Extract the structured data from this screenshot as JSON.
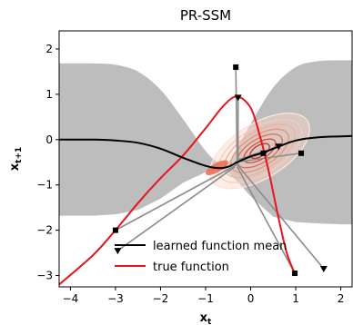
{
  "chart_data": {
    "type": "line",
    "title": "PR-SSM",
    "xlabel": "x_t",
    "ylabel": "x_{t+1}",
    "xlim": [
      -4.25,
      2.25
    ],
    "ylim": [
      -3.25,
      2.4
    ],
    "xticks": [
      -4,
      -3,
      -2,
      -1,
      0,
      1,
      2
    ],
    "yticks": [
      -3,
      -2,
      -1,
      0,
      1,
      2
    ],
    "grid": false,
    "legend_position": "lower-center",
    "series": [
      {
        "name": "learned function mean",
        "color": "#000000",
        "x": [
          -4.25,
          -3.5,
          -3.0,
          -2.5,
          -2.0,
          -1.5,
          -1.0,
          -0.7,
          -0.5,
          -0.3,
          0.0,
          0.3,
          0.6,
          1.0,
          1.5,
          2.0,
          2.25
        ],
        "y": [
          0.0,
          0.0,
          -0.02,
          -0.07,
          -0.2,
          -0.4,
          -0.58,
          -0.63,
          -0.6,
          -0.5,
          -0.37,
          -0.28,
          -0.16,
          -0.02,
          0.05,
          0.07,
          0.08
        ]
      },
      {
        "name": "true function",
        "color": "#e8141b",
        "x": [
          -4.25,
          -3.5,
          -3.0,
          -2.5,
          -2.0,
          -1.5,
          -1.0,
          -0.6,
          -0.3,
          0.0,
          0.2,
          0.4,
          0.6,
          0.8,
          1.0
        ],
        "y": [
          -3.2,
          -2.55,
          -2.0,
          -1.4,
          -0.85,
          -0.35,
          0.25,
          0.75,
          0.95,
          0.7,
          0.1,
          -0.7,
          -1.65,
          -2.5,
          -3.0
        ]
      }
    ],
    "uncertainty_band": {
      "color": "#bdbdbd",
      "x": [
        -4.25,
        -3.5,
        -3.0,
        -2.5,
        -2.0,
        -1.5,
        -1.0,
        -0.7,
        -0.5,
        -0.3,
        0.0,
        0.5,
        1.0,
        1.5,
        2.0,
        2.25
      ],
      "upper": [
        1.68,
        1.68,
        1.65,
        1.5,
        1.1,
        0.45,
        -0.25,
        -0.52,
        -0.5,
        -0.2,
        0.35,
        1.15,
        1.6,
        1.73,
        1.75,
        1.75
      ],
      "lower": [
        -1.68,
        -1.68,
        -1.65,
        -1.55,
        -1.3,
        -0.95,
        -0.72,
        -0.65,
        -0.72,
        -0.92,
        -1.25,
        -1.7,
        -1.82,
        -1.85,
        -1.87,
        -1.87
      ]
    },
    "samples": [
      {
        "start": [
          -0.3,
          -0.55
        ],
        "end": [
          -3.0,
          -2.0
        ]
      },
      {
        "start": [
          -0.35,
          -0.6
        ],
        "end": [
          -2.95,
          -2.45
        ]
      },
      {
        "start": [
          -0.3,
          -0.5
        ],
        "end": [
          -0.33,
          1.6
        ]
      },
      {
        "start": [
          -0.28,
          -0.55
        ],
        "end": [
          -0.28,
          0.93
        ]
      },
      {
        "start": [
          -0.3,
          -0.6
        ],
        "end": [
          0.98,
          -2.95
        ]
      },
      {
        "start": [
          -0.3,
          -0.55
        ],
        "end": [
          1.62,
          -2.85
        ]
      },
      {
        "start": [
          -0.35,
          -0.5
        ],
        "end": [
          0.28,
          -0.3
        ]
      },
      {
        "start": [
          -0.3,
          -0.45
        ],
        "end": [
          0.62,
          -0.15
        ]
      },
      {
        "start": [
          -0.35,
          -0.5
        ],
        "end": [
          1.12,
          -0.3
        ]
      }
    ],
    "density_center": [
      0.2,
      -0.25
    ]
  }
}
